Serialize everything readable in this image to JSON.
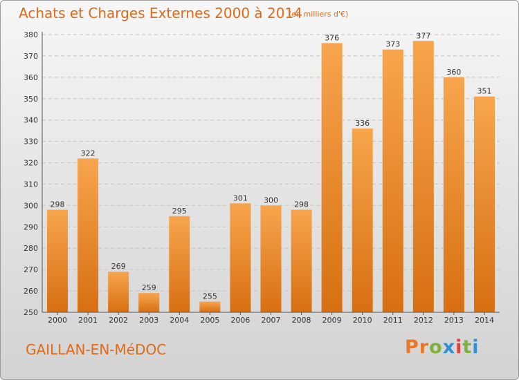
{
  "header": {
    "title": "Achats et Charges Externes 2000 à 2014",
    "unit": "(en milliers d'€)"
  },
  "footer": {
    "commune": "GAILLAN-EN-MéDOC",
    "logo": "Proxiti"
  },
  "colors": {
    "accent": "#e06a18",
    "bar_top": "#f7a54d",
    "bar_bottom": "#d86f12",
    "logo_letters": [
      "#e8772a",
      "#e8772a",
      "#7fb13c",
      "#2f8fd6",
      "#e0433a",
      "#7fb13c",
      "#2f8fd6"
    ]
  },
  "chart_data": {
    "type": "bar",
    "title": "Achats et Charges Externes 2000 à 2014",
    "subtitle": "(en milliers d'€)",
    "xlabel": "",
    "ylabel": "",
    "categories": [
      "2000",
      "2001",
      "2002",
      "2003",
      "2004",
      "2005",
      "2006",
      "2007",
      "2008",
      "2009",
      "2010",
      "2011",
      "2012",
      "2013",
      "2014"
    ],
    "values": [
      298,
      322,
      269,
      259,
      295,
      255,
      301,
      300,
      298,
      376,
      336,
      373,
      377,
      360,
      351
    ],
    "ylim": [
      250,
      380
    ],
    "yticks": [
      250,
      260,
      270,
      280,
      290,
      300,
      310,
      320,
      330,
      340,
      350,
      360,
      370,
      380
    ],
    "grid": true,
    "data_labels": true
  }
}
